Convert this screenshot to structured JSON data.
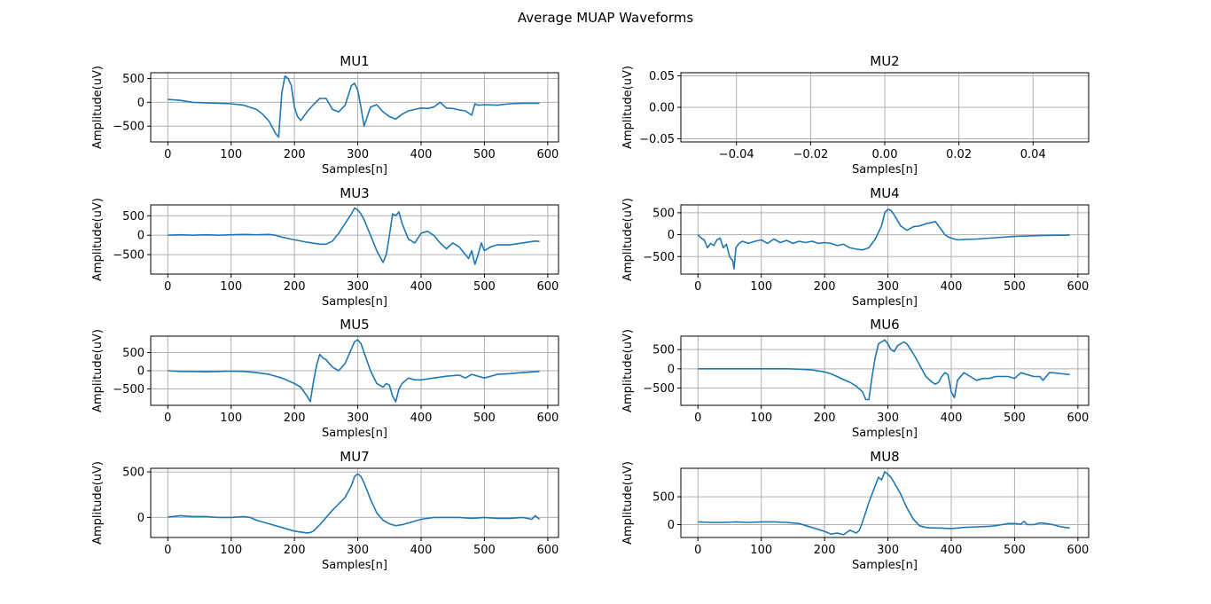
{
  "figure": {
    "title": "Average MUAP Waveforms"
  },
  "colors": {
    "line": "#1f77b4",
    "grid": "#b0b0b0",
    "axes": "#000000"
  },
  "chart_data": [
    {
      "type": "line",
      "title": "MU1",
      "xlabel": "Samples[n]",
      "ylabel": "Amplitude(uV)",
      "xlim": [
        -27,
        617
      ],
      "ylim": [
        -830,
        620
      ],
      "grid": true,
      "xticks": [
        0,
        100,
        200,
        300,
        400,
        500,
        600
      ],
      "yticks": [
        -500,
        0,
        500
      ],
      "series": [
        {
          "x": [
            0,
            20,
            40,
            60,
            80,
            100,
            120,
            140,
            150,
            160,
            170,
            175,
            180,
            185,
            190,
            195,
            200,
            205,
            210,
            220,
            230,
            240,
            250,
            260,
            270,
            280,
            290,
            295,
            300,
            305,
            310,
            315,
            320,
            330,
            340,
            350,
            360,
            370,
            380,
            390,
            400,
            410,
            420,
            430,
            440,
            450,
            460,
            470,
            480,
            485,
            490,
            500,
            520,
            540,
            560,
            587
          ],
          "y": [
            60,
            40,
            0,
            -10,
            -20,
            -30,
            -60,
            -150,
            -250,
            -400,
            -650,
            -730,
            200,
            550,
            500,
            350,
            -100,
            -300,
            -380,
            -200,
            -50,
            80,
            80,
            -150,
            -200,
            -60,
            350,
            400,
            250,
            -100,
            -500,
            -300,
            -100,
            -50,
            -200,
            -300,
            -350,
            -250,
            -180,
            -150,
            -120,
            -130,
            -100,
            0,
            -120,
            -130,
            -160,
            -180,
            -270,
            -30,
            -60,
            -50,
            -60,
            -30,
            -20,
            -20
          ]
        }
      ]
    },
    {
      "type": "line",
      "title": "MU2",
      "xlabel": "Samples[n]",
      "ylabel": "Amplitude(uV)",
      "xlim": [
        -0.055,
        0.055
      ],
      "ylim": [
        -0.055,
        0.055
      ],
      "grid": true,
      "xticks": [
        -0.04,
        -0.02,
        0.0,
        0.02,
        0.04
      ],
      "yticks": [
        -0.05,
        0.0,
        0.05
      ],
      "series": []
    },
    {
      "type": "line",
      "title": "MU3",
      "xlabel": "Samples[n]",
      "ylabel": "Amplitude(uV)",
      "xlim": [
        -27,
        617
      ],
      "ylim": [
        -1000,
        780
      ],
      "grid": true,
      "xticks": [
        0,
        100,
        200,
        300,
        400,
        500,
        600
      ],
      "yticks": [
        -500,
        0,
        500
      ],
      "series": [
        {
          "x": [
            0,
            20,
            40,
            60,
            80,
            100,
            120,
            140,
            160,
            170,
            180,
            200,
            220,
            240,
            250,
            260,
            270,
            280,
            290,
            295,
            300,
            305,
            310,
            320,
            330,
            340,
            345,
            350,
            355,
            360,
            365,
            370,
            375,
            380,
            390,
            400,
            410,
            420,
            430,
            440,
            450,
            460,
            470,
            475,
            480,
            485,
            490,
            495,
            500,
            510,
            520,
            540,
            560,
            580,
            587
          ],
          "y": [
            0,
            10,
            0,
            10,
            0,
            10,
            20,
            10,
            20,
            0,
            -50,
            -120,
            -180,
            -230,
            -230,
            -150,
            50,
            300,
            550,
            700,
            650,
            550,
            400,
            0,
            -400,
            -700,
            -500,
            0,
            550,
            500,
            600,
            300,
            100,
            -100,
            -200,
            50,
            100,
            0,
            -200,
            -350,
            -200,
            -300,
            -500,
            -600,
            -400,
            -750,
            -500,
            -200,
            -400,
            -300,
            -250,
            -250,
            -200,
            -150,
            -160
          ]
        }
      ]
    },
    {
      "type": "line",
      "title": "MU4",
      "xlabel": "Samples[n]",
      "ylabel": "Amplitude(uV)",
      "xlim": [
        -27,
        617
      ],
      "ylim": [
        -900,
        680
      ],
      "grid": true,
      "xticks": [
        0,
        100,
        200,
        300,
        400,
        500,
        600
      ],
      "yticks": [
        -500,
        0,
        500
      ],
      "series": [
        {
          "x": [
            0,
            5,
            10,
            15,
            20,
            25,
            30,
            35,
            40,
            45,
            50,
            55,
            57,
            60,
            65,
            70,
            80,
            90,
            100,
            110,
            120,
            130,
            140,
            150,
            160,
            170,
            180,
            190,
            200,
            210,
            220,
            230,
            240,
            250,
            260,
            270,
            280,
            290,
            295,
            300,
            305,
            310,
            320,
            330,
            340,
            350,
            360,
            370,
            375,
            380,
            385,
            390,
            395,
            400,
            405,
            410,
            420,
            440,
            460,
            480,
            500,
            520,
            540,
            560,
            587
          ],
          "y": [
            0,
            -80,
            -120,
            -300,
            -200,
            -250,
            -120,
            -80,
            -300,
            -220,
            -500,
            -600,
            -780,
            -300,
            -200,
            -150,
            -200,
            -150,
            -120,
            -200,
            -100,
            -180,
            -130,
            -200,
            -150,
            -180,
            -150,
            -200,
            -180,
            -200,
            -250,
            -220,
            -300,
            -330,
            -350,
            -300,
            -100,
            200,
            500,
            580,
            550,
            450,
            200,
            100,
            180,
            200,
            250,
            280,
            300,
            200,
            100,
            0,
            -50,
            -80,
            -100,
            -120,
            -110,
            -100,
            -80,
            -60,
            -40,
            -30,
            -20,
            -15,
            -10
          ]
        }
      ]
    },
    {
      "type": "line",
      "title": "MU5",
      "xlabel": "Samples[n]",
      "ylabel": "Amplitude(uV)",
      "xlim": [
        -27,
        617
      ],
      "ylim": [
        -950,
        950
      ],
      "grid": true,
      "xticks": [
        0,
        100,
        200,
        300,
        400,
        500,
        600
      ],
      "yticks": [
        -500,
        0,
        500
      ],
      "series": [
        {
          "x": [
            0,
            20,
            40,
            60,
            80,
            100,
            120,
            140,
            160,
            180,
            200,
            210,
            220,
            225,
            230,
            235,
            240,
            245,
            250,
            255,
            260,
            270,
            280,
            290,
            295,
            300,
            305,
            310,
            320,
            330,
            340,
            345,
            350,
            355,
            360,
            365,
            370,
            380,
            390,
            400,
            420,
            440,
            460,
            470,
            480,
            490,
            500,
            510,
            520,
            540,
            560,
            587
          ],
          "y": [
            0,
            -20,
            -20,
            -30,
            -20,
            -10,
            -20,
            -50,
            -100,
            -200,
            -350,
            -450,
            -700,
            -850,
            -300,
            150,
            450,
            350,
            300,
            200,
            100,
            0,
            200,
            600,
            800,
            850,
            750,
            500,
            0,
            -350,
            -450,
            -350,
            -400,
            -700,
            -850,
            -500,
            -350,
            -200,
            -250,
            -250,
            -200,
            -150,
            -120,
            -200,
            -100,
            -150,
            -200,
            -150,
            -100,
            -80,
            -50,
            -20
          ]
        }
      ]
    },
    {
      "type": "line",
      "title": "MU6",
      "xlabel": "Samples[n]",
      "ylabel": "Amplitude(uV)",
      "xlim": [
        -27,
        617
      ],
      "ylim": [
        -950,
        850
      ],
      "grid": true,
      "xticks": [
        0,
        100,
        200,
        300,
        400,
        500,
        600
      ],
      "yticks": [
        -500,
        0,
        500
      ],
      "series": [
        {
          "x": [
            0,
            20,
            40,
            60,
            80,
            100,
            120,
            140,
            160,
            180,
            200,
            210,
            220,
            230,
            240,
            250,
            260,
            265,
            270,
            275,
            280,
            285,
            290,
            295,
            300,
            305,
            310,
            315,
            320,
            325,
            330,
            340,
            350,
            360,
            370,
            375,
            380,
            385,
            390,
            395,
            400,
            405,
            410,
            420,
            430,
            440,
            450,
            460,
            470,
            480,
            490,
            500,
            510,
            520,
            530,
            540,
            545,
            550,
            555,
            560,
            570,
            587
          ],
          "y": [
            0,
            0,
            0,
            0,
            0,
            0,
            0,
            0,
            -10,
            -30,
            -80,
            -130,
            -200,
            -280,
            -350,
            -450,
            -600,
            -800,
            -800,
            -200,
            300,
            650,
            700,
            750,
            650,
            500,
            450,
            600,
            650,
            700,
            650,
            400,
            100,
            -200,
            -350,
            -400,
            -350,
            -200,
            -100,
            -150,
            -600,
            -750,
            -300,
            -100,
            -200,
            -300,
            -250,
            -250,
            -200,
            -200,
            -200,
            -250,
            -100,
            -150,
            -200,
            -200,
            -300,
            -200,
            -100,
            -100,
            -120,
            -150
          ]
        }
      ]
    },
    {
      "type": "line",
      "title": "MU7",
      "xlabel": "Samples[n]",
      "ylabel": "Amplitude(uV)",
      "xlim": [
        -27,
        617
      ],
      "ylim": [
        -220,
        540
      ],
      "grid": true,
      "xticks": [
        0,
        100,
        200,
        300,
        400,
        500,
        600
      ],
      "yticks": [
        0,
        500
      ],
      "series": [
        {
          "x": [
            0,
            20,
            40,
            60,
            80,
            100,
            120,
            130,
            140,
            160,
            180,
            200,
            220,
            225,
            230,
            240,
            250,
            260,
            270,
            280,
            290,
            295,
            300,
            305,
            310,
            320,
            330,
            340,
            350,
            360,
            370,
            380,
            400,
            420,
            440,
            460,
            480,
            500,
            520,
            540,
            560,
            575,
            580,
            587
          ],
          "y": [
            5,
            20,
            10,
            10,
            0,
            0,
            10,
            0,
            -30,
            -70,
            -110,
            -150,
            -170,
            -165,
            -150,
            -80,
            0,
            80,
            150,
            220,
            350,
            450,
            480,
            450,
            380,
            200,
            50,
            -30,
            -70,
            -90,
            -80,
            -60,
            -20,
            0,
            0,
            0,
            -10,
            0,
            -10,
            -10,
            0,
            -20,
            20,
            -20
          ]
        }
      ]
    },
    {
      "type": "line",
      "title": "MU8",
      "xlabel": "Samples[n]",
      "ylabel": "Amplitude(uV)",
      "xlim": [
        -27,
        617
      ],
      "ylim": [
        -230,
        1010
      ],
      "grid": true,
      "xticks": [
        0,
        100,
        200,
        300,
        400,
        500,
        600
      ],
      "yticks": [
        0,
        500
      ],
      "series": [
        {
          "x": [
            0,
            20,
            40,
            60,
            80,
            100,
            120,
            140,
            160,
            180,
            200,
            210,
            220,
            230,
            240,
            250,
            255,
            260,
            270,
            280,
            285,
            290,
            295,
            300,
            305,
            310,
            320,
            330,
            340,
            350,
            360,
            370,
            380,
            400,
            420,
            440,
            460,
            470,
            480,
            490,
            500,
            510,
            515,
            520,
            530,
            540,
            550,
            560,
            570,
            580,
            587
          ],
          "y": [
            50,
            40,
            40,
            50,
            40,
            50,
            50,
            40,
            20,
            -50,
            -120,
            -170,
            -150,
            -180,
            -100,
            -150,
            -100,
            50,
            400,
            700,
            850,
            800,
            950,
            900,
            850,
            750,
            550,
            300,
            100,
            -20,
            -50,
            -60,
            -60,
            -70,
            -50,
            -40,
            -30,
            -20,
            0,
            20,
            20,
            10,
            60,
            0,
            0,
            30,
            20,
            0,
            -30,
            -50,
            -60
          ]
        }
      ]
    }
  ]
}
